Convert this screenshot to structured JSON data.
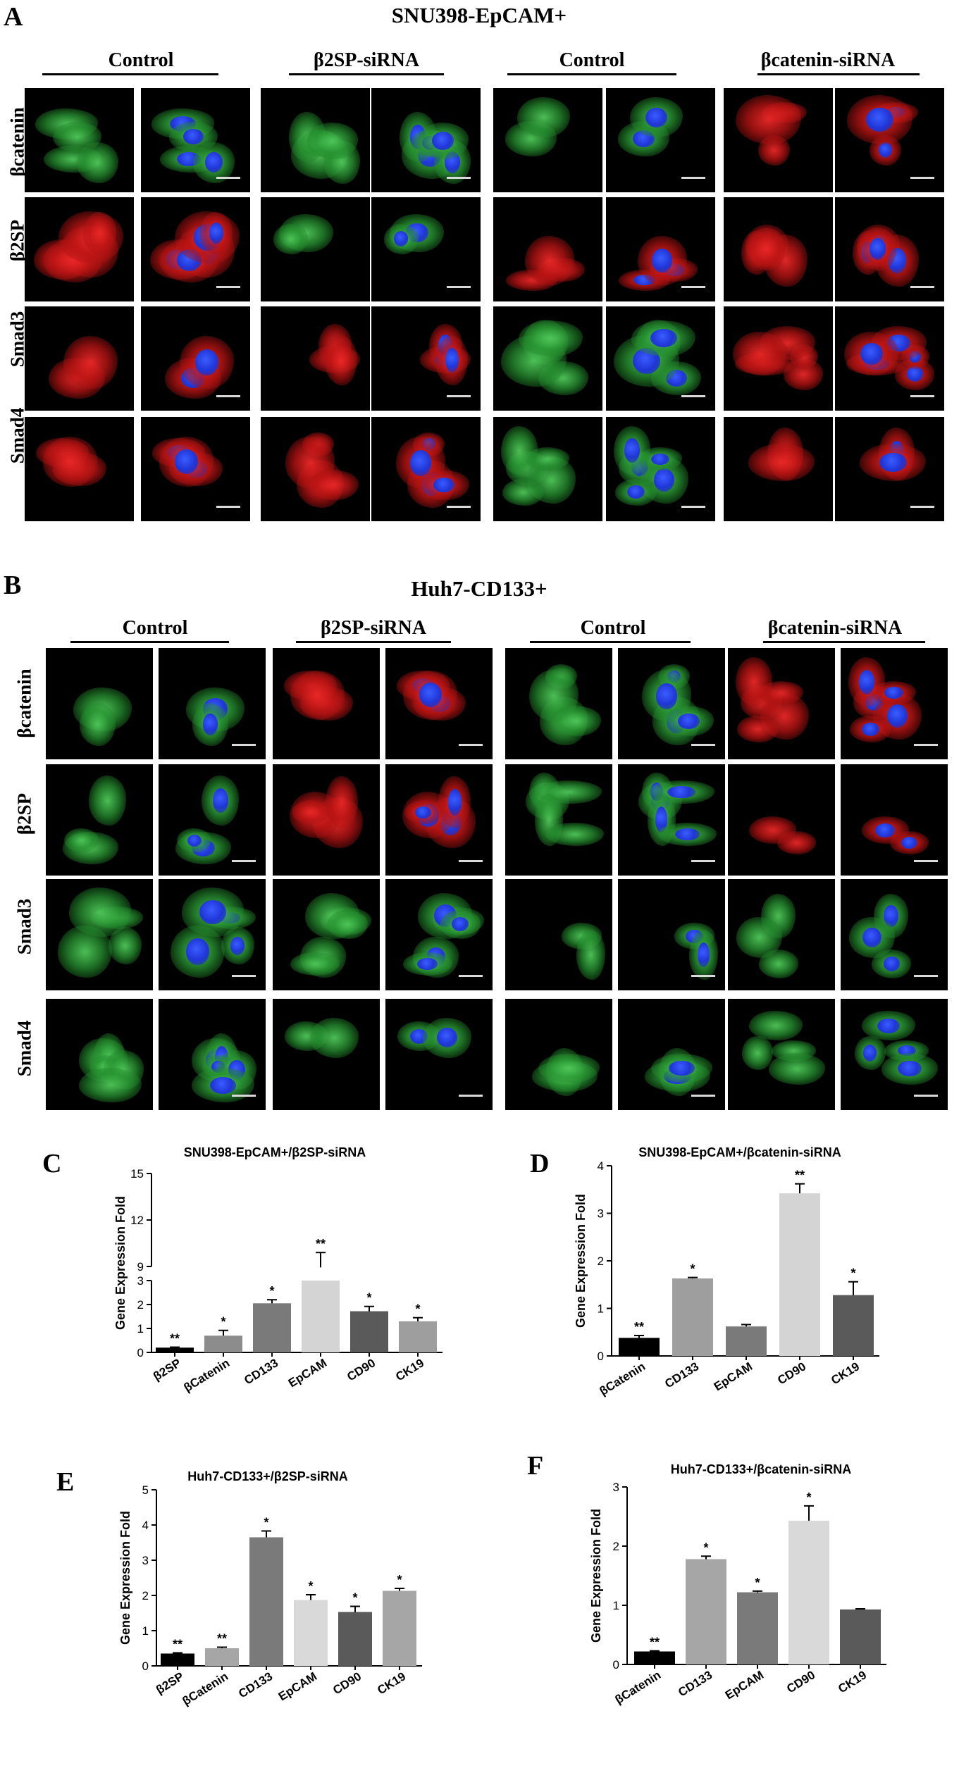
{
  "panel_a": {
    "letter": "A",
    "title": "SNU398-EpCAM+",
    "groups": [
      "Control",
      "β2SP-siRNA",
      "Control",
      "βcatenin-siRNA"
    ],
    "rows": [
      "βcatenin",
      "β2SP",
      "Smad3",
      "Smad4"
    ],
    "colors": [
      [
        "green",
        "green",
        "green",
        "green",
        "green",
        "green",
        "red",
        "red"
      ],
      [
        "red",
        "red",
        "green",
        "green",
        "red",
        "red",
        "red",
        "red"
      ],
      [
        "red",
        "red",
        "red",
        "red",
        "green",
        "green",
        "red",
        "red"
      ],
      [
        "red",
        "red",
        "red",
        "red",
        "green",
        "green",
        "red",
        "red"
      ]
    ]
  },
  "panel_b": {
    "letter": "B",
    "title": "Huh7-CD133+",
    "groups": [
      "Control",
      "β2SP-siRNA",
      "Control",
      "βcatenin-siRNA"
    ],
    "rows": [
      "βcatenin",
      "β2SP",
      "Smad3",
      "Smad4"
    ],
    "colors": [
      [
        "green",
        "green",
        "red",
        "red",
        "green",
        "green",
        "red",
        "red"
      ],
      [
        "green",
        "green",
        "red",
        "red",
        "green",
        "green",
        "red",
        "red"
      ],
      [
        "green",
        "green",
        "green",
        "green",
        "green",
        "green",
        "green",
        "green"
      ],
      [
        "green",
        "green",
        "green",
        "green",
        "green",
        "green",
        "green",
        "green"
      ]
    ]
  },
  "chart_data": [
    {
      "letter": "C",
      "type": "bar",
      "title": "SNU398-EpCAM+/β2SP-siRNA",
      "ylabel": "Gene Expression Fold",
      "categories": [
        "β2SP",
        "βCatenin",
        "CD133",
        "EpCAM",
        "CD90",
        "CK19"
      ],
      "values": [
        0.2,
        0.7,
        2.05,
        8.6,
        1.72,
        1.3
      ],
      "errors": [
        0.02,
        0.22,
        0.15,
        1.3,
        0.2,
        0.15
      ],
      "significance": [
        "**",
        "*",
        "*",
        "**",
        "*",
        "*"
      ],
      "colors": [
        "#000000",
        "#8c8c8c",
        "#7a7a7a",
        "#d4d4d4",
        "#5a5a5a",
        "#9e9e9e"
      ],
      "broken_axis": true,
      "lower_ylim": [
        0,
        3
      ],
      "lower_ticks": [
        0,
        1,
        2,
        3
      ],
      "upper_ylim": [
        9,
        15
      ],
      "upper_ticks": [
        9,
        12,
        15
      ]
    },
    {
      "letter": "D",
      "type": "bar",
      "title": "SNU398-EpCAM+/βcatenin-siRNA",
      "ylabel": "Gene Expression Fold",
      "categories": [
        "βCatenin",
        "CD133",
        "EpCAM",
        "CD90",
        "CK19"
      ],
      "values": [
        0.38,
        1.63,
        0.62,
        3.42,
        1.28
      ],
      "errors": [
        0.05,
        0.02,
        0.04,
        0.2,
        0.28
      ],
      "significance": [
        "**",
        "*",
        "",
        "**",
        "*"
      ],
      "colors": [
        "#000000",
        "#9e9e9e",
        "#7a7a7a",
        "#d4d4d4",
        "#5a5a5a"
      ],
      "ylim": [
        0,
        4
      ],
      "ticks": [
        0,
        1,
        2,
        3,
        4
      ]
    },
    {
      "letter": "E",
      "type": "bar",
      "title": "Huh7-CD133+/β2SP-siRNA",
      "ylabel": "Gene Expression Fold",
      "categories": [
        "β2SP",
        "βCatenin",
        "CD133",
        "EpCAM",
        "CD90",
        "CK19"
      ],
      "values": [
        0.35,
        0.5,
        3.65,
        1.87,
        1.53,
        2.13
      ],
      "errors": [
        0.02,
        0.03,
        0.18,
        0.15,
        0.16,
        0.07
      ],
      "significance": [
        "**",
        "**",
        "*",
        "*",
        "*",
        "*"
      ],
      "colors": [
        "#000000",
        "#a6a6a6",
        "#7a7a7a",
        "#d9d9d9",
        "#5a5a5a",
        "#a6a6a6"
      ],
      "ylim": [
        0,
        5
      ],
      "ticks": [
        0,
        1,
        2,
        3,
        4,
        5
      ]
    },
    {
      "letter": "F",
      "type": "bar",
      "title": "Huh7-CD133+/βcatenin-siRNA",
      "ylabel": "Gene Expression Fold",
      "categories": [
        "βCatenin",
        "CD133",
        "EpCAM",
        "CD90",
        "CK19"
      ],
      "values": [
        0.22,
        1.78,
        1.22,
        2.43,
        0.93
      ],
      "errors": [
        0.01,
        0.05,
        0.02,
        0.25,
        0.01
      ],
      "significance": [
        "**",
        "*",
        "*",
        "*",
        ""
      ],
      "colors": [
        "#000000",
        "#a6a6a6",
        "#7a7a7a",
        "#d9d9d9",
        "#5a5a5a"
      ],
      "ylim": [
        0,
        3
      ],
      "ticks": [
        0,
        1,
        2,
        3
      ]
    }
  ]
}
